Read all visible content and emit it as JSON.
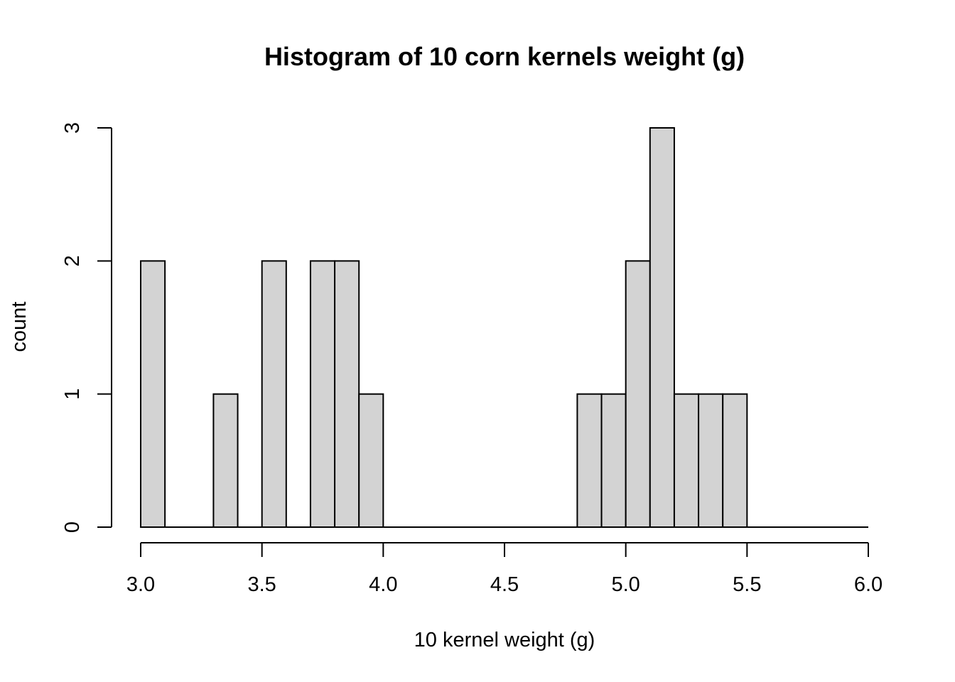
{
  "chart_data": {
    "type": "bar",
    "title": "Histogram of 10 corn kernels weight (g)",
    "xlabel": "10 kernel weight (g)",
    "ylabel": "count",
    "xlim": [
      3.0,
      6.0
    ],
    "ylim": [
      0,
      3
    ],
    "bin_width": 0.1,
    "bin_starts": [
      3.0,
      3.1,
      3.2,
      3.3,
      3.4,
      3.5,
      3.6,
      3.7,
      3.8,
      3.9,
      4.0,
      4.1,
      4.2,
      4.3,
      4.4,
      4.5,
      4.6,
      4.7,
      4.8,
      4.9,
      5.0,
      5.1,
      5.2,
      5.3,
      5.4,
      5.5,
      5.6,
      5.7,
      5.8,
      5.9
    ],
    "counts": [
      2,
      0,
      0,
      1,
      0,
      2,
      0,
      2,
      2,
      1,
      0,
      0,
      0,
      0,
      0,
      0,
      0,
      0,
      1,
      1,
      2,
      3,
      1,
      1,
      1,
      0,
      0,
      0,
      0,
      0
    ],
    "x_ticks": [
      "3.0",
      "3.5",
      "4.0",
      "4.5",
      "5.0",
      "5.5",
      "6.0"
    ],
    "y_ticks": [
      "0",
      "1",
      "2",
      "3"
    ],
    "bar_fill": "#d3d3d3",
    "bar_stroke": "#000000",
    "grid": false,
    "legend": "none"
  }
}
